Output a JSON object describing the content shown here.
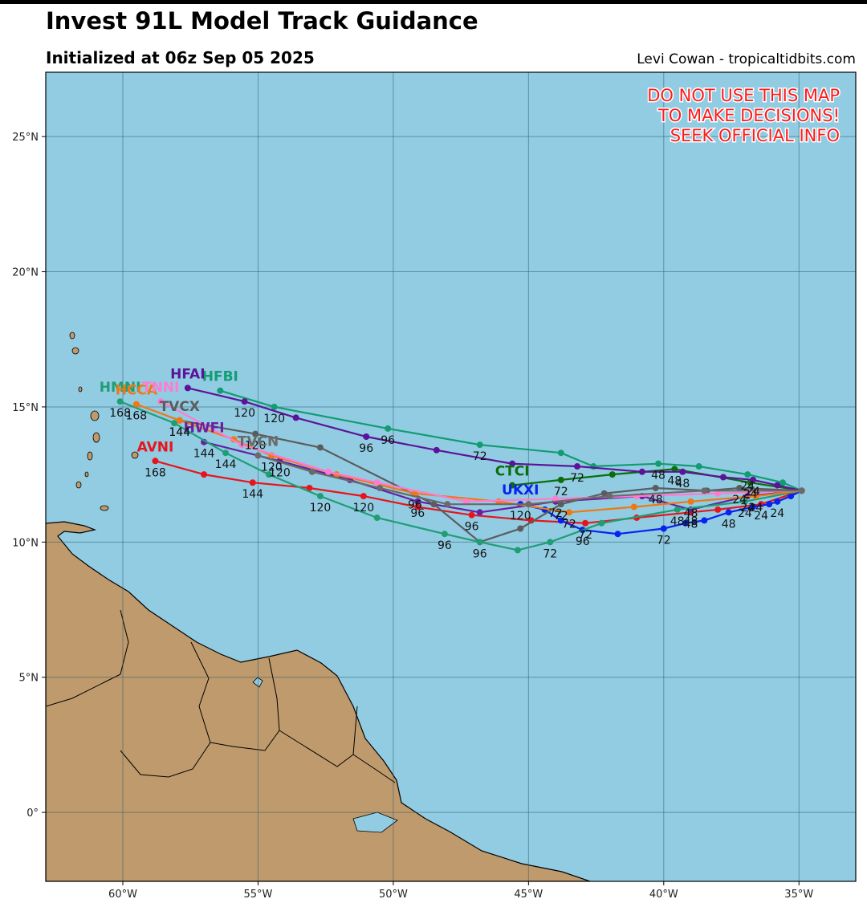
{
  "chart_data": {
    "type": "line",
    "title": "Invest 91L Model Track Guidance",
    "subtitle": "Initialized at 06z Sep 05 2025",
    "credit": "Levi Cowan - tropicaltidbits.com",
    "warning": [
      "DO NOT USE THIS MAP",
      "TO MAKE DECISIONS!",
      "SEEK OFFICIAL INFO"
    ],
    "xlim": [
      -62.85,
      -32.9
    ],
    "ylim": [
      -2.55,
      27.38
    ],
    "xticks": [
      {
        "value": -60,
        "label": "60°W"
      },
      {
        "value": -55,
        "label": "55°W"
      },
      {
        "value": -50,
        "label": "50°W"
      },
      {
        "value": -45,
        "label": "45°W"
      },
      {
        "value": -40,
        "label": "40°W"
      },
      {
        "value": -35,
        "label": "35°W"
      }
    ],
    "yticks": [
      {
        "value": 0,
        "label": "0°"
      },
      {
        "value": 5,
        "label": "5°N"
      },
      {
        "value": 10,
        "label": "10°N"
      },
      {
        "value": 15,
        "label": "15°N"
      },
      {
        "value": 20,
        "label": "20°N"
      },
      {
        "value": 25,
        "label": "25°N"
      }
    ],
    "grid": true,
    "series": [
      {
        "name": "AVNI",
        "color": "#e8141c",
        "x": [
          -34.9,
          -36.4,
          -38.0,
          -39.0,
          -41.0,
          -42.9,
          -44.9,
          -47.1,
          -49.1,
          -51.1,
          -53.1,
          -55.2,
          -57.0,
          -58.8
        ],
        "y": [
          11.9,
          11.4,
          11.2,
          11.1,
          10.9,
          10.7,
          10.8,
          11.0,
          11.3,
          11.7,
          12.0,
          12.2,
          12.5,
          13.0
        ],
        "hours": [
          null,
          24,
          null,
          48,
          null,
          72,
          null,
          96,
          null,
          120,
          null,
          144,
          null,
          168
        ]
      },
      {
        "name": "UKXI",
        "color": "#0a22ee",
        "x": [
          -34.9,
          -35.3,
          -35.8,
          -36.1,
          -36.7,
          -37.6,
          -38.5,
          -39.2,
          -40.0,
          -41.7,
          -43.0,
          -43.8,
          -44.4,
          -45.3
        ],
        "y": [
          11.9,
          11.7,
          11.5,
          11.4,
          11.3,
          11.1,
          10.8,
          10.7,
          10.5,
          10.3,
          10.45,
          10.8,
          11.2,
          11.4
        ],
        "hours": [
          null,
          null,
          24,
          null,
          null,
          48,
          null,
          null,
          72,
          null,
          96,
          null,
          null,
          120
        ]
      },
      {
        "name": "CTCI",
        "color": "#0b6e0b",
        "x": [
          -34.9,
          -36.8,
          -39.6,
          -41.9,
          -43.8,
          -45.6
        ],
        "y": [
          11.9,
          12.2,
          12.7,
          12.5,
          12.3,
          12.1
        ],
        "hours": [
          null,
          24,
          48,
          null,
          72,
          null
        ]
      },
      {
        "name": "HFBI",
        "color": "#139c72",
        "x": [
          -34.9,
          -35.6,
          -36.9,
          -38.7,
          -40.2,
          -42.6,
          -43.8,
          -46.8,
          -50.2,
          -54.4,
          -56.4
        ],
        "y": [
          11.9,
          12.2,
          12.5,
          12.8,
          12.9,
          12.8,
          13.3,
          13.6,
          14.2,
          15.0,
          15.6
        ],
        "hours": [
          null,
          null,
          24,
          null,
          48,
          null,
          null,
          72,
          96,
          120,
          null
        ]
      },
      {
        "name": "HFAI",
        "color": "#5b1499",
        "x": [
          -34.9,
          -35.8,
          -36.7,
          -37.8,
          -39.3,
          -40.8,
          -43.2,
          -45.6,
          -48.4,
          -51.0,
          -53.6,
          -55.5,
          -57.6
        ],
        "y": [
          11.9,
          12.1,
          12.3,
          12.4,
          12.6,
          12.6,
          12.8,
          12.9,
          13.4,
          13.9,
          14.6,
          15.2,
          15.7
        ],
        "hours": [
          null,
          null,
          24,
          null,
          48,
          null,
          72,
          null,
          null,
          96,
          null,
          120,
          null
        ]
      },
      {
        "name": "HWFI",
        "color": "#6a1fa0",
        "x": [
          -34.9,
          -36.9,
          -39.0,
          -40.8,
          -44.0,
          -46.8,
          -49.1,
          -51.6,
          -54.2,
          -57.0
        ],
        "y": [
          11.9,
          11.7,
          11.2,
          11.7,
          11.5,
          11.1,
          11.5,
          12.3,
          13.0,
          13.7
        ],
        "hours": [
          null,
          24,
          48,
          null,
          72,
          null,
          96,
          null,
          120,
          144
        ]
      },
      {
        "name": "TVCX",
        "color": "#5c5c5c",
        "x": [
          -34.9,
          -37.2,
          -38.4,
          -40.3,
          -42.2,
          -43.8,
          -45.3,
          -46.8,
          -48.5,
          -52.7,
          -55.1,
          -57.9
        ],
        "y": [
          11.9,
          12.0,
          11.9,
          12.0,
          11.8,
          11.4,
          10.5,
          10.0,
          11.4,
          13.5,
          14.0,
          14.5
        ],
        "hours": [
          null,
          24,
          null,
          48,
          null,
          72,
          null,
          96,
          null,
          null,
          120,
          144
        ]
      },
      {
        "name": "HMNI",
        "color": "#1f9e74",
        "x": [
          -34.9,
          -37.0,
          -39.5,
          -42.3,
          -44.2,
          -45.4,
          -46.8,
          -48.1,
          -50.6,
          -52.7,
          -54.6,
          -56.2,
          -58.1,
          -60.1
        ],
        "y": [
          11.9,
          11.5,
          11.2,
          10.7,
          10.0,
          9.7,
          10.0,
          10.3,
          10.9,
          11.7,
          12.5,
          13.3,
          14.4,
          15.2
        ],
        "hours": [
          null,
          24,
          48,
          null,
          72,
          null,
          null,
          96,
          null,
          120,
          null,
          144,
          null,
          168
        ]
      },
      {
        "name": "HCCA",
        "color": "#f07814",
        "x": [
          -34.9,
          -36.6,
          -39.0,
          -41.1,
          -43.5,
          -46.1,
          -49.2,
          -52.1,
          -54.5,
          -55.9,
          -57.9,
          -59.5
        ],
        "y": [
          11.9,
          11.7,
          11.5,
          11.3,
          11.1,
          11.5,
          11.8,
          12.5,
          13.2,
          13.8,
          14.5,
          15.1
        ],
        "hours": [
          null,
          24,
          48,
          null,
          72,
          null,
          96,
          null,
          120,
          null,
          144,
          168
        ]
      },
      {
        "name": "TNNI",
        "color": "#ff7ad0",
        "x": [
          -34.9,
          -38.0,
          -41.0,
          -44.0,
          -47.3,
          -50.6,
          -52.4,
          -55.6,
          -58.6
        ],
        "y": [
          11.9,
          11.8,
          11.7,
          11.6,
          11.5,
          12.2,
          12.6,
          13.6,
          15.2
        ],
        "hours": [
          null,
          null,
          null,
          null,
          null,
          null,
          null,
          null,
          null
        ]
      },
      {
        "name": "TVCN",
        "color": "#6a6a6a",
        "x": [
          -34.9,
          -38.5,
          -42.0,
          -45.0,
          -48.0,
          -50.5,
          -53.0,
          -55.0
        ],
        "y": [
          11.9,
          11.9,
          11.7,
          11.4,
          11.4,
          12.0,
          12.6,
          13.2
        ],
        "hours": [
          null,
          null,
          null,
          null,
          null,
          null,
          null,
          null
        ]
      }
    ]
  }
}
